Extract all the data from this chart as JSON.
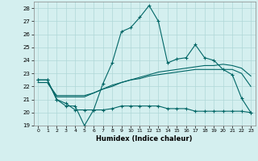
{
  "xlabel": "Humidex (Indice chaleur)",
  "background_color": "#d4efef",
  "grid_color": "#afd8d8",
  "line_color": "#006666",
  "xlim": [
    -0.5,
    23.5
  ],
  "ylim": [
    19,
    28.5
  ],
  "yticks": [
    19,
    20,
    21,
    22,
    23,
    24,
    25,
    26,
    27,
    28
  ],
  "xticks": [
    0,
    1,
    2,
    3,
    4,
    5,
    6,
    7,
    8,
    9,
    10,
    11,
    12,
    13,
    14,
    15,
    16,
    17,
    18,
    19,
    20,
    21,
    22,
    23
  ],
  "series1_x": [
    0,
    1,
    2,
    3,
    4,
    5,
    6,
    7,
    8,
    9,
    10,
    11,
    12,
    13,
    14,
    15,
    16,
    17,
    18,
    19,
    20,
    21,
    22,
    23
  ],
  "series1_y": [
    22.5,
    22.5,
    21.0,
    20.5,
    20.5,
    19.0,
    20.2,
    22.2,
    23.8,
    26.2,
    26.5,
    27.3,
    28.2,
    27.0,
    23.8,
    24.1,
    24.2,
    25.2,
    24.2,
    24.0,
    23.3,
    22.9,
    21.1,
    20.0
  ],
  "series2_x": [
    0,
    1,
    2,
    3,
    4,
    5,
    6,
    7,
    8,
    9,
    10,
    11,
    12,
    13,
    14,
    15,
    16,
    17,
    18,
    19,
    20,
    21,
    22,
    23
  ],
  "series2_y": [
    22.5,
    22.5,
    21.0,
    20.7,
    20.2,
    20.2,
    20.2,
    20.2,
    20.3,
    20.5,
    20.5,
    20.5,
    20.5,
    20.5,
    20.3,
    20.3,
    20.3,
    20.1,
    20.1,
    20.1,
    20.1,
    20.1,
    20.1,
    20.0
  ],
  "series3_x": [
    0,
    1,
    2,
    3,
    4,
    5,
    6,
    7,
    8,
    9,
    10,
    11,
    12,
    13,
    14,
    15,
    16,
    17,
    18,
    19,
    20,
    21,
    22,
    23
  ],
  "series3_y": [
    22.3,
    22.3,
    21.2,
    21.2,
    21.2,
    21.2,
    21.5,
    21.8,
    22.0,
    22.3,
    22.5,
    22.6,
    22.8,
    22.9,
    23.0,
    23.1,
    23.2,
    23.3,
    23.3,
    23.3,
    23.3,
    23.3,
    23.0,
    22.0
  ],
  "series4_x": [
    0,
    1,
    2,
    3,
    4,
    5,
    6,
    7,
    8,
    9,
    10,
    11,
    12,
    13,
    14,
    15,
    16,
    17,
    18,
    19,
    20,
    21,
    22,
    23
  ],
  "series4_y": [
    22.3,
    22.3,
    21.3,
    21.3,
    21.3,
    21.3,
    21.5,
    21.8,
    22.1,
    22.3,
    22.5,
    22.7,
    22.9,
    23.1,
    23.2,
    23.3,
    23.4,
    23.5,
    23.6,
    23.6,
    23.7,
    23.6,
    23.4,
    22.8
  ]
}
